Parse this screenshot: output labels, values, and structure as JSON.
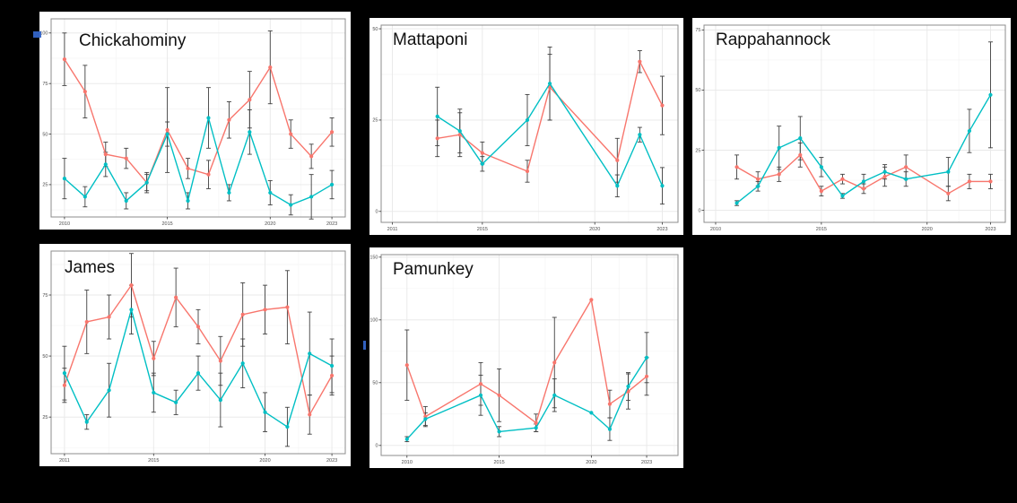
{
  "figure": {
    "background": "#000000",
    "panel_count": 5,
    "note": ""
  },
  "colors": {
    "series_red": "#F8766D",
    "series_teal": "#00BFC4",
    "error_bar": "#3F3F3F",
    "grid_major": "#E8E8E8",
    "grid_minor": "#F4F4F4",
    "panel_border": "#8C8C8C",
    "panel_background": "#FFFFFF",
    "tick_label": "#4D4D4D",
    "tick_mark": "#333333",
    "title_text": "#111111",
    "selection_blue": "#3465C8"
  },
  "chart_data": [
    {
      "type": "line",
      "title": "Chickahominy",
      "x": [
        2010,
        2011,
        2012,
        2013,
        2014,
        2015,
        2016,
        2017,
        2018,
        2019,
        2020,
        2021,
        2022,
        2023
      ],
      "series": [
        {
          "name": "red-series",
          "color": "#F8766D",
          "values": [
            87,
            71,
            40,
            38,
            26,
            52,
            33,
            30,
            57,
            67,
            83,
            50,
            39,
            51
          ],
          "errors": [
            13,
            13,
            6,
            5,
            4,
            21,
            5,
            7,
            9,
            14,
            18,
            7,
            6,
            7
          ]
        },
        {
          "name": "teal-series",
          "color": "#00BFC4",
          "values": [
            28,
            19,
            35,
            17,
            26,
            50,
            17,
            58,
            21,
            51,
            21,
            15,
            19,
            25
          ],
          "errors": [
            10,
            5,
            6,
            4,
            5,
            6,
            4,
            15,
            4,
            11,
            6,
            5,
            11,
            7
          ]
        }
      ],
      "xticks": [
        2010,
        2015,
        2020,
        2023
      ],
      "yticks": [
        25,
        50,
        75,
        100
      ],
      "xlim": [
        2009.35,
        2023.65
      ],
      "ylim": [
        9,
        107
      ],
      "grid": true,
      "legend": "none",
      "error_bars": true
    },
    {
      "type": "line",
      "title": "Mattaponi",
      "x": [
        2013,
        2014,
        2015,
        2017,
        2018,
        2021,
        2022,
        2023
      ],
      "series": [
        {
          "name": "red-series",
          "color": "#F8766D",
          "values": [
            20,
            21,
            16,
            11,
            34,
            14,
            41,
            29
          ],
          "errors": [
            5,
            6,
            3,
            3,
            9,
            6,
            3,
            8
          ]
        },
        {
          "name": "teal-series",
          "color": "#00BFC4",
          "values": [
            26,
            22,
            13,
            25,
            35,
            7,
            21,
            7
          ],
          "errors": [
            8,
            6,
            2,
            7,
            10,
            3,
            2,
            5
          ]
        }
      ],
      "xticks": [
        2011,
        2015,
        2020,
        2023
      ],
      "yticks": [
        0,
        25,
        50
      ],
      "xlim": [
        2010.5,
        2023.7
      ],
      "ylim": [
        -3,
        51
      ],
      "grid": true,
      "legend": "none",
      "error_bars": true
    },
    {
      "type": "line",
      "title": "Rappahannock",
      "x": [
        2011,
        2012,
        2013,
        2014,
        2015,
        2016,
        2017,
        2018,
        2019,
        2021,
        2022,
        2023
      ],
      "series": [
        {
          "name": "red-series",
          "color": "#F8766D",
          "values": [
            18,
            13,
            15,
            23,
            8,
            13,
            9,
            14,
            18,
            7,
            12,
            12
          ],
          "errors": [
            5,
            3,
            3,
            5,
            2,
            2,
            2,
            4,
            5,
            3,
            3,
            3
          ]
        },
        {
          "name": "teal-series",
          "color": "#00BFC4",
          "values": [
            3,
            10,
            26,
            30,
            18,
            6,
            12,
            16,
            13,
            16,
            33,
            48
          ],
          "errors": [
            1,
            2,
            9,
            9,
            4,
            1,
            3,
            3,
            3,
            6,
            9,
            22
          ]
        }
      ],
      "xticks": [
        2010,
        2015,
        2020,
        2023
      ],
      "yticks": [
        0,
        25,
        50,
        75
      ],
      "xlim": [
        2009.45,
        2023.7
      ],
      "ylim": [
        -5,
        77
      ],
      "grid": true,
      "legend": "none",
      "error_bars": true
    },
    {
      "type": "line",
      "title": "James",
      "x": [
        2011,
        2012,
        2013,
        2014,
        2015,
        2016,
        2017,
        2018,
        2019,
        2020,
        2021,
        2022,
        2023
      ],
      "series": [
        {
          "name": "red-series",
          "color": "#F8766D",
          "values": [
            38,
            64,
            66,
            79,
            49,
            74,
            62,
            48,
            67,
            69,
            70,
            26,
            42
          ],
          "errors": [
            7,
            13,
            9,
            13,
            7,
            12,
            7,
            10,
            13,
            10,
            15,
            8,
            8
          ]
        },
        {
          "name": "teal-series",
          "color": "#00BFC4",
          "values": [
            43,
            23,
            36,
            69,
            35,
            31,
            43,
            32,
            47,
            27,
            21,
            51,
            46
          ],
          "errors": [
            11,
            3,
            11,
            10,
            8,
            5,
            7,
            11,
            10,
            8,
            8,
            17,
            11
          ]
        }
      ],
      "xticks": [
        2011,
        2015,
        2020,
        2023
      ],
      "yticks": [
        25,
        50,
        75
      ],
      "xlim": [
        2010.4,
        2023.6
      ],
      "ylim": [
        10,
        93
      ],
      "grid": true,
      "legend": "none",
      "error_bars": true
    },
    {
      "type": "line",
      "title": "Pamunkey",
      "x": [
        2010,
        2011,
        2014,
        2015,
        2017,
        2018,
        2020,
        2021,
        2022,
        2023
      ],
      "series": [
        {
          "name": "red-series",
          "color": "#F8766D",
          "values": [
            64,
            23,
            49,
            40,
            18,
            66,
            116,
            33,
            43,
            55
          ],
          "errors": [
            28,
            8,
            17,
            21,
            7,
            36,
            0,
            11,
            14,
            15
          ]
        },
        {
          "name": "teal-series",
          "color": "#00BFC4",
          "values": [
            5,
            21,
            40,
            11,
            14,
            40,
            26,
            13,
            47,
            70
          ],
          "errors": [
            2,
            5,
            16,
            4,
            3,
            13,
            0,
            9,
            11,
            20
          ]
        }
      ],
      "xticks": [
        2010,
        2015,
        2020,
        2023
      ],
      "yticks": [
        0,
        50,
        100,
        150
      ],
      "xlim": [
        2008.6,
        2024.7
      ],
      "ylim": [
        -8,
        152
      ],
      "grid": true,
      "legend": "none",
      "error_bars": true
    }
  ]
}
